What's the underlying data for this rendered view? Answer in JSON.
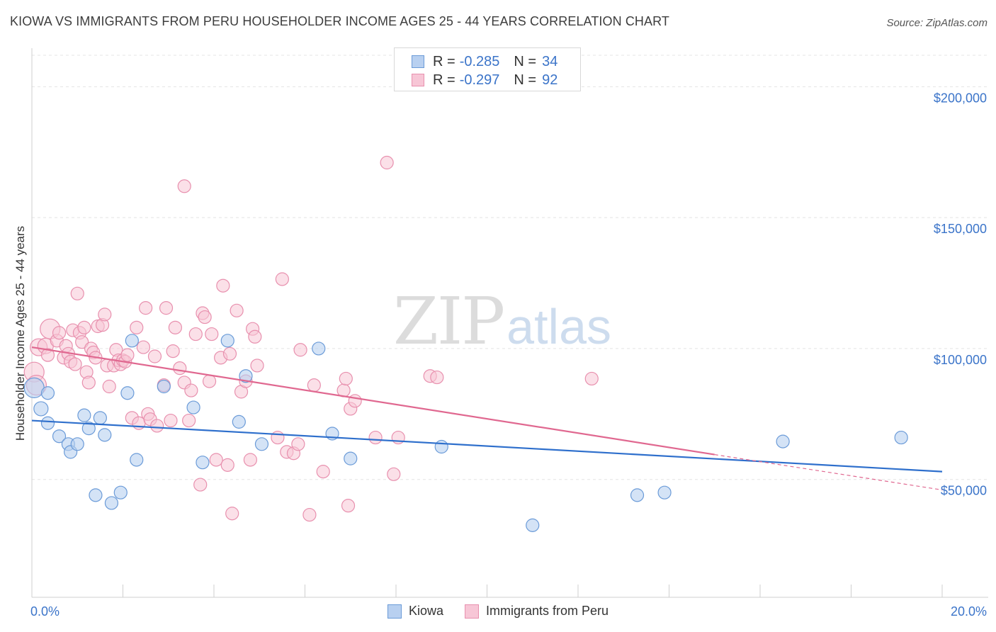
{
  "title": "KIOWA VS IMMIGRANTS FROM PERU HOUSEHOLDER INCOME AGES 25 - 44 YEARS CORRELATION CHART",
  "source": "Source: ZipAtlas.com",
  "watermark": {
    "zip": "ZIP",
    "atlas": "atlas"
  },
  "colors": {
    "kiowa_fill": "#b8d0f0",
    "kiowa_stroke": "#6b9bd8",
    "kiowa_line": "#2e6fcc",
    "peru_fill": "#f7c6d6",
    "peru_stroke": "#e890ae",
    "peru_line": "#e06890",
    "tick_text": "#3b74c9",
    "grid": "#e4e4e4"
  },
  "stats": [
    {
      "r_label": "R =",
      "r_value": "-0.285",
      "n_label": "N =",
      "n_value": "34"
    },
    {
      "r_label": "R =",
      "r_value": "-0.297",
      "n_label": "N =",
      "n_value": "92"
    }
  ],
  "legend": {
    "kiowa": "Kiowa",
    "peru": "Immigrants from Peru"
  },
  "chart_data": {
    "type": "scatter",
    "title": "KIOWA VS IMMIGRANTS FROM PERU HOUSEHOLDER INCOME AGES 25 - 44 YEARS CORRELATION CHART",
    "xlabel": "",
    "ylabel": "Householder Income Ages 25 - 44 years",
    "xlim": [
      0,
      20
    ],
    "ylim": [
      5000,
      212000
    ],
    "x_tick_labels": [
      "0.0%",
      "20.0%"
    ],
    "y_ticks": [
      50000,
      100000,
      150000,
      200000
    ],
    "y_tick_labels": [
      "$50,000",
      "$100,000",
      "$150,000",
      "$200,000"
    ],
    "grid": true,
    "series": [
      {
        "name": "Kiowa",
        "r": -0.285,
        "n": 34,
        "trend": {
          "x": [
            0,
            20
          ],
          "y": [
            72500,
            53000
          ]
        },
        "points": [
          [
            0.05,
            85000,
            14
          ],
          [
            0.2,
            77000,
            10
          ],
          [
            0.35,
            83000,
            9
          ],
          [
            0.35,
            71500,
            9
          ],
          [
            0.6,
            66500,
            9
          ],
          [
            0.8,
            63500,
            9
          ],
          [
            0.85,
            60500,
            9
          ],
          [
            1.0,
            63500,
            9
          ],
          [
            1.15,
            74500,
            9
          ],
          [
            1.25,
            69500,
            9
          ],
          [
            1.4,
            44000,
            9
          ],
          [
            1.5,
            73500,
            9
          ],
          [
            1.6,
            67000,
            9
          ],
          [
            1.75,
            41000,
            9
          ],
          [
            1.95,
            45000,
            9
          ],
          [
            2.1,
            83000,
            9
          ],
          [
            2.2,
            103000,
            9
          ],
          [
            2.3,
            57500,
            9
          ],
          [
            2.9,
            85500,
            9
          ],
          [
            3.55,
            77500,
            9
          ],
          [
            3.75,
            56500,
            9
          ],
          [
            4.3,
            103000,
            9
          ],
          [
            4.55,
            72000,
            9
          ],
          [
            4.7,
            89500,
            9
          ],
          [
            5.05,
            63500,
            9
          ],
          [
            6.3,
            100000,
            9
          ],
          [
            6.6,
            67500,
            9
          ],
          [
            7.0,
            58000,
            9
          ],
          [
            9.0,
            62500,
            9
          ],
          [
            11.0,
            32500,
            9
          ],
          [
            13.3,
            44000,
            9
          ],
          [
            13.9,
            45000,
            9
          ],
          [
            16.5,
            64500,
            9
          ],
          [
            19.1,
            66000,
            9
          ]
        ]
      },
      {
        "name": "Immigrants from Peru",
        "r": -0.297,
        "n": 92,
        "trend": {
          "x": [
            0,
            15
          ],
          "y": [
            100500,
            59500
          ]
        },
        "trend_extension": {
          "x": [
            15,
            20
          ],
          "y": [
            59500,
            46000
          ]
        },
        "points": [
          [
            0.05,
            91000,
            14
          ],
          [
            0.1,
            86000,
            14
          ],
          [
            0.15,
            100500,
            12
          ],
          [
            0.3,
            101000,
            11
          ],
          [
            0.35,
            97500,
            9
          ],
          [
            0.4,
            107500,
            14
          ],
          [
            0.55,
            103000,
            9
          ],
          [
            0.6,
            106000,
            9
          ],
          [
            0.7,
            96500,
            9
          ],
          [
            0.75,
            101000,
            9
          ],
          [
            0.8,
            98000,
            9
          ],
          [
            0.85,
            95000,
            9
          ],
          [
            0.9,
            107000,
            9
          ],
          [
            0.95,
            94000,
            9
          ],
          [
            1.0,
            121000,
            9
          ],
          [
            1.05,
            106000,
            9
          ],
          [
            1.1,
            102500,
            9
          ],
          [
            1.15,
            108000,
            9
          ],
          [
            1.2,
            91000,
            9
          ],
          [
            1.25,
            87000,
            9
          ],
          [
            1.3,
            100000,
            9
          ],
          [
            1.35,
            98500,
            9
          ],
          [
            1.4,
            96500,
            9
          ],
          [
            1.45,
            108500,
            9
          ],
          [
            1.55,
            109000,
            9
          ],
          [
            1.6,
            113000,
            9
          ],
          [
            1.65,
            93500,
            9
          ],
          [
            1.7,
            85500,
            9
          ],
          [
            1.8,
            93500,
            9
          ],
          [
            1.85,
            99500,
            9
          ],
          [
            1.9,
            95500,
            9
          ],
          [
            1.95,
            94000,
            9
          ],
          [
            2.0,
            95500,
            9
          ],
          [
            2.05,
            95000,
            9
          ],
          [
            2.1,
            97500,
            9
          ],
          [
            2.2,
            73500,
            9
          ],
          [
            2.3,
            108000,
            9
          ],
          [
            2.35,
            71500,
            9
          ],
          [
            2.45,
            100500,
            9
          ],
          [
            2.5,
            115500,
            9
          ],
          [
            2.55,
            75000,
            9
          ],
          [
            2.6,
            73000,
            9
          ],
          [
            2.7,
            97000,
            9
          ],
          [
            2.75,
            70500,
            9
          ],
          [
            2.9,
            86000,
            9
          ],
          [
            2.95,
            115500,
            9
          ],
          [
            3.05,
            72500,
            9
          ],
          [
            3.1,
            99000,
            9
          ],
          [
            3.15,
            108000,
            9
          ],
          [
            3.25,
            92500,
            9
          ],
          [
            3.35,
            87000,
            9
          ],
          [
            3.45,
            72500,
            9
          ],
          [
            3.5,
            84000,
            9
          ],
          [
            3.6,
            105500,
            9
          ],
          [
            3.7,
            48000,
            9
          ],
          [
            3.75,
            113500,
            9
          ],
          [
            3.8,
            112000,
            9
          ],
          [
            3.9,
            87500,
            9
          ],
          [
            3.95,
            105500,
            9
          ],
          [
            4.05,
            57500,
            9
          ],
          [
            4.15,
            96500,
            9
          ],
          [
            4.2,
            124000,
            9
          ],
          [
            4.3,
            55500,
            9
          ],
          [
            4.35,
            98000,
            9
          ],
          [
            4.4,
            37000,
            9
          ],
          [
            4.5,
            114500,
            9
          ],
          [
            4.6,
            83500,
            9
          ],
          [
            4.7,
            87500,
            9
          ],
          [
            4.8,
            57500,
            9
          ],
          [
            4.85,
            107500,
            9
          ],
          [
            4.9,
            104500,
            9
          ],
          [
            4.95,
            93500,
            9
          ],
          [
            5.4,
            66000,
            9
          ],
          [
            5.5,
            126500,
            9
          ],
          [
            5.6,
            60500,
            9
          ],
          [
            5.75,
            60000,
            9
          ],
          [
            5.85,
            63500,
            9
          ],
          [
            5.9,
            99500,
            9
          ],
          [
            6.1,
            36500,
            9
          ],
          [
            6.2,
            86000,
            9
          ],
          [
            6.4,
            53000,
            9
          ],
          [
            6.85,
            84000,
            9
          ],
          [
            6.9,
            88500,
            9
          ],
          [
            6.95,
            40000,
            9
          ],
          [
            7.0,
            77000,
            9
          ],
          [
            7.1,
            80000,
            9
          ],
          [
            7.55,
            66000,
            9
          ],
          [
            7.8,
            171000,
            9
          ],
          [
            7.95,
            52000,
            9
          ],
          [
            8.05,
            66000,
            9
          ],
          [
            8.75,
            89500,
            9
          ],
          [
            8.9,
            89000,
            9
          ],
          [
            12.3,
            88500,
            9
          ],
          [
            3.35,
            162000,
            9
          ]
        ]
      }
    ]
  }
}
